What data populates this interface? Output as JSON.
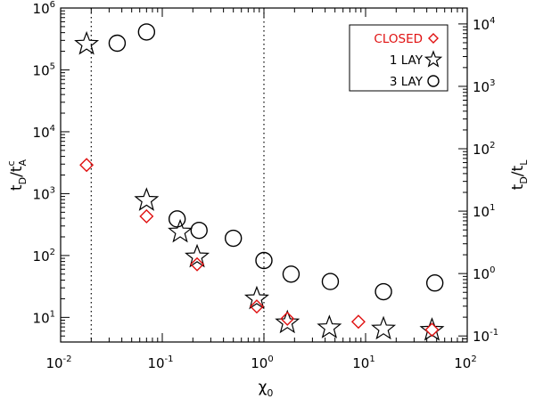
{
  "chart_data": {
    "type": "scatter",
    "xscale": "log",
    "yscale": "log",
    "xlim": [
      0.01,
      100
    ],
    "ylim": [
      4,
      1000000
    ],
    "y2lim": [
      0.08,
      18000
    ],
    "xlabel": "χ0",
    "ylabel": "tD/tcA",
    "y2label": "tD/tL",
    "xlabel_parts": {
      "base": "χ",
      "sub": "0"
    },
    "ylabel_parts": {
      "base": "t",
      "sub1": "D",
      "mid": "/t",
      "sup": "c",
      "sub2": "A"
    },
    "y2label_parts": {
      "base": "t",
      "sub1": "D",
      "mid": "/t",
      "sub2": "L"
    },
    "x_ticks": [
      {
        "base": "10",
        "exp": "-2"
      },
      {
        "base": "10",
        "exp": "-1"
      },
      {
        "base": "10",
        "exp": "0"
      },
      {
        "base": "10",
        "exp": "1"
      },
      {
        "base": "10",
        "exp": "2"
      }
    ],
    "y_ticks": [
      {
        "base": "10",
        "exp": "1"
      },
      {
        "base": "10",
        "exp": "2"
      },
      {
        "base": "10",
        "exp": "3"
      },
      {
        "base": "10",
        "exp": "4"
      },
      {
        "base": "10",
        "exp": "5"
      },
      {
        "base": "10",
        "exp": "6"
      }
    ],
    "y2_ticks": [
      {
        "base": "10",
        "exp": "-1"
      },
      {
        "base": "10",
        "exp": "0"
      },
      {
        "base": "10",
        "exp": "1"
      },
      {
        "base": "10",
        "exp": "2"
      },
      {
        "base": "10",
        "exp": "3"
      },
      {
        "base": "10",
        "exp": "4"
      }
    ],
    "vlines": [
      0.02,
      1.0
    ],
    "legend_position": "top-right",
    "series": [
      {
        "name": "CLOSED",
        "marker": "diamond",
        "color": "#e01010",
        "points": [
          [
            0.018,
            2900
          ],
          [
            0.07,
            430
          ],
          [
            0.22,
            72
          ],
          [
            0.85,
            15
          ],
          [
            1.7,
            9.5
          ],
          [
            8.5,
            8.5
          ],
          [
            45,
            6.3
          ]
        ]
      },
      {
        "name": "1 LAY",
        "marker": "star",
        "color": "#000000",
        "points": [
          [
            0.018,
            260000
          ],
          [
            0.07,
            780
          ],
          [
            0.15,
            240
          ],
          [
            0.22,
            95
          ],
          [
            0.85,
            20
          ],
          [
            1.7,
            8.2
          ],
          [
            4.4,
            6.8
          ],
          [
            15,
            6.5
          ],
          [
            45,
            6.2
          ]
        ]
      },
      {
        "name": "3 LAY",
        "marker": "circle",
        "color": "#000000",
        "points": [
          [
            0.036,
            270000
          ],
          [
            0.07,
            410000
          ],
          [
            0.14,
            390
          ],
          [
            0.23,
            255
          ],
          [
            0.5,
            190
          ],
          [
            1.0,
            83
          ],
          [
            1.85,
            50
          ],
          [
            4.5,
            38
          ],
          [
            15,
            26
          ],
          [
            48,
            36
          ]
        ]
      }
    ]
  }
}
